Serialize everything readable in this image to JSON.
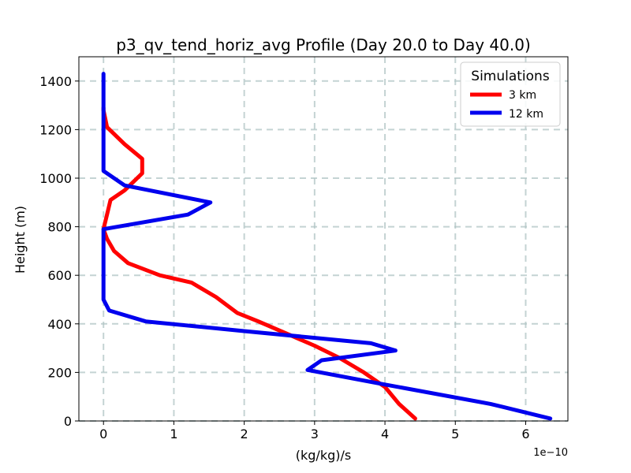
{
  "chart_data": {
    "type": "line",
    "title": "p3_qv_tend_horiz_avg Profile (Day 20.0 to Day 40.0)",
    "xlabel": "(kg/kg)/s",
    "ylabel": "Height (m)",
    "x_offset_label": "1e−10",
    "xlim": [
      -0.35,
      6.6
    ],
    "ylim": [
      0,
      1500
    ],
    "xticks": [
      0,
      1,
      2,
      3,
      4,
      5,
      6
    ],
    "xtick_labels": [
      "0",
      "1",
      "2",
      "3",
      "4",
      "5",
      "6"
    ],
    "yticks": [
      0,
      200,
      400,
      600,
      800,
      1000,
      1200,
      1400
    ],
    "ytick_labels": [
      "0",
      "200",
      "400",
      "600",
      "800",
      "1000",
      "1200",
      "1400"
    ],
    "grid": true,
    "legend": {
      "title": "Simulations",
      "position": "upper right"
    },
    "series": [
      {
        "name": "3 km",
        "color": "#ff0000",
        "points": [
          [
            4.43,
            10
          ],
          [
            4.2,
            70
          ],
          [
            4.0,
            140
          ],
          [
            3.7,
            200
          ],
          [
            3.35,
            260
          ],
          [
            3.0,
            310
          ],
          [
            2.6,
            360
          ],
          [
            2.2,
            410
          ],
          [
            1.9,
            445
          ],
          [
            1.6,
            510
          ],
          [
            1.25,
            570
          ],
          [
            0.8,
            600
          ],
          [
            0.35,
            650
          ],
          [
            0.15,
            700
          ],
          [
            0.05,
            750
          ],
          [
            0.0,
            790
          ],
          [
            0.05,
            850
          ],
          [
            0.1,
            910
          ],
          [
            0.3,
            950
          ],
          [
            0.55,
            1020
          ],
          [
            0.55,
            1080
          ],
          [
            0.3,
            1140
          ],
          [
            0.05,
            1210
          ],
          [
            0.0,
            1280
          ],
          [
            0.0,
            1290
          ]
        ]
      },
      {
        "name": "12 km",
        "color": "#0000ee",
        "points": [
          [
            6.35,
            10
          ],
          [
            5.5,
            70
          ],
          [
            4.0,
            150
          ],
          [
            2.9,
            210
          ],
          [
            3.1,
            250
          ],
          [
            4.15,
            290
          ],
          [
            3.8,
            320
          ],
          [
            2.0,
            370
          ],
          [
            0.6,
            410
          ],
          [
            0.08,
            455
          ],
          [
            0.0,
            500
          ],
          [
            0.0,
            600
          ],
          [
            0.0,
            700
          ],
          [
            0.0,
            790
          ],
          [
            1.2,
            850
          ],
          [
            1.52,
            900
          ],
          [
            0.3,
            970
          ],
          [
            0.0,
            1030
          ],
          [
            0.0,
            1200
          ],
          [
            0.0,
            1430
          ]
        ]
      }
    ]
  }
}
